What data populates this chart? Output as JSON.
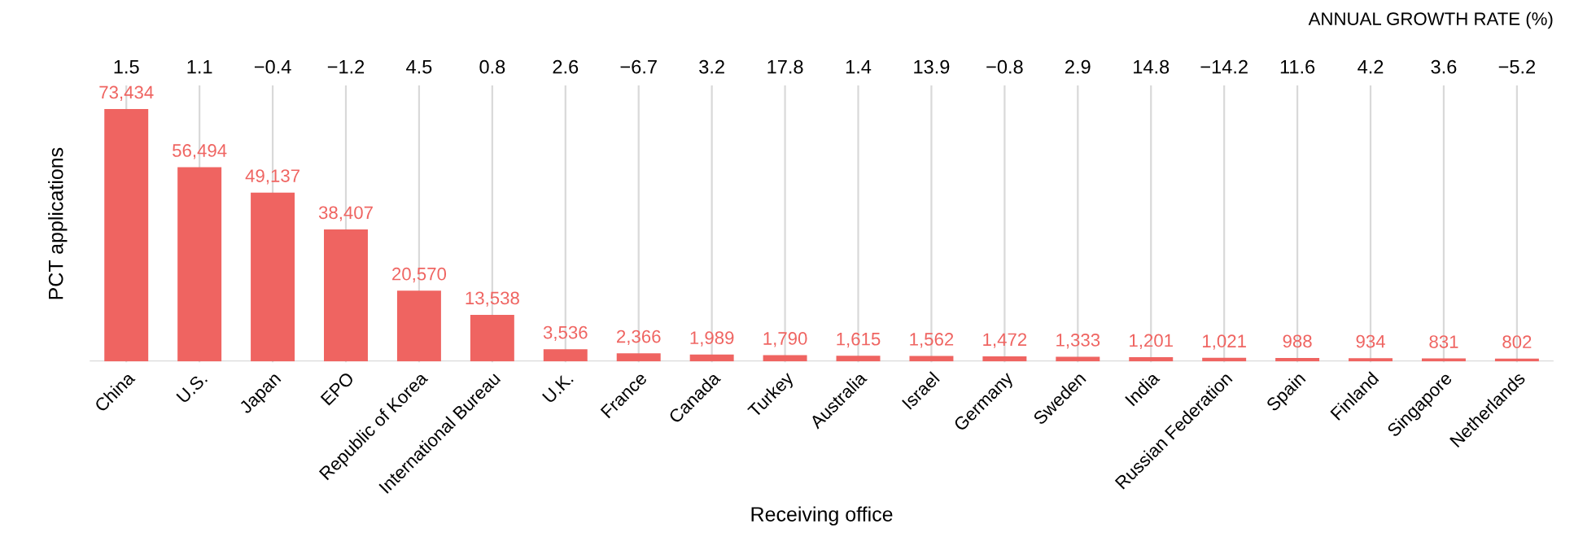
{
  "chart_data": {
    "type": "bar",
    "xlabel": "Receiving office",
    "ylabel": "PCT applications",
    "categories": [
      "China",
      "U.S.",
      "Japan",
      "EPO",
      "Republic of Korea",
      "International Bureau",
      "U.K.",
      "France",
      "Canada",
      "Turkey",
      "Australia",
      "Israel",
      "Germany",
      "Sweden",
      "India",
      "Russian Federation",
      "Spain",
      "Finland",
      "Singapore",
      "Netherlands"
    ],
    "values": [
      73434,
      56494,
      49137,
      38407,
      20570,
      13538,
      3536,
      2366,
      1989,
      1790,
      1615,
      1562,
      1472,
      1333,
      1201,
      1021,
      988,
      934,
      831,
      802
    ],
    "value_labels": [
      "73,434",
      "56,494",
      "49,137",
      "38,407",
      "20,570",
      "13,538",
      "3,536",
      "2,366",
      "1,989",
      "1,790",
      "1,615",
      "1,562",
      "1,472",
      "1,333",
      "1,201",
      "1,021",
      "988",
      "934",
      "831",
      "802"
    ],
    "color": "#ef6461",
    "grid": "x",
    "legend": false,
    "annotations": [
      "ANNUAL GROWTH RATE (%)",
      "1.5",
      "1.1",
      "−0.4",
      "−1.2",
      "4.5",
      "0.8",
      "2.6",
      "−6.7",
      "3.2",
      "17.8",
      "1.4",
      "13.9",
      "−0.8",
      "2.9",
      "14.8",
      "−14.2",
      "11.6",
      "4.2",
      "3.6",
      "−5.2"
    ]
  }
}
